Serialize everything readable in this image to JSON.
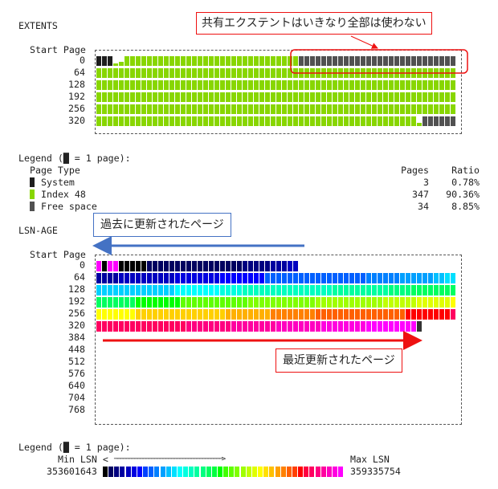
{
  "extents": {
    "title": "EXTENTS",
    "start_page_label": "Start Page",
    "row_labels": [
      "0",
      "64",
      "128",
      "192",
      "256",
      "320"
    ],
    "colors": {
      "system": "#1e1e1e",
      "index": "#88d600",
      "free": "#cccccc"
    },
    "rows": [
      [
        {
          "type": "system",
          "count": 3
        },
        {
          "type": "index",
          "count": 1,
          "fill": 0.25
        },
        {
          "type": "index",
          "count": 1,
          "fill": 0.4
        },
        {
          "type": "index",
          "count": 31,
          "fill": 1
        },
        {
          "type": "free",
          "count": 28
        }
      ],
      [
        {
          "type": "index",
          "count": 64,
          "fill": 1
        }
      ],
      [
        {
          "type": "index",
          "count": 64,
          "fill": 1
        }
      ],
      [
        {
          "type": "index",
          "count": 64,
          "fill": 1
        }
      ],
      [
        {
          "type": "index",
          "count": 64,
          "fill": 1
        }
      ],
      [
        {
          "type": "index",
          "count": 57,
          "fill": 1
        },
        {
          "type": "index",
          "count": 1,
          "fill": 0.3
        },
        {
          "type": "free",
          "count": 6
        }
      ]
    ],
    "legend": {
      "title": "Legend (█ = 1 page):",
      "headers": [
        "Page Type",
        "Pages",
        "Ratio"
      ],
      "items": [
        {
          "type": "system",
          "label": "System",
          "pages": "3",
          "ratio": "0.78%"
        },
        {
          "type": "index",
          "label": "Index 48",
          "pages": "347",
          "ratio": "90.36%"
        },
        {
          "type": "free",
          "label": "Free space",
          "pages": "34",
          "ratio": "8.85%"
        }
      ]
    }
  },
  "lsn_age": {
    "title": "LSN-AGE",
    "start_page_label": "Start Page",
    "row_labels": [
      "0",
      "64",
      "128",
      "192",
      "256",
      "320",
      "384",
      "448",
      "512",
      "576",
      "640",
      "704",
      "768"
    ],
    "rows": [
      [
        [
          "#ff00ff",
          1
        ],
        [
          "#000000",
          1
        ],
        [
          "#ff00ff",
          2
        ],
        [
          "#000000",
          5
        ],
        [
          "#000060",
          17
        ],
        [
          "#000080",
          5
        ],
        [
          "#0000a0",
          3
        ],
        [
          "#0000c0",
          2
        ]
      ],
      [
        [
          "#0000a0",
          4
        ],
        [
          "#0000c0",
          10
        ],
        [
          "#0000e0",
          8
        ],
        [
          "#0000ff",
          8
        ],
        [
          "#0060ff",
          18
        ],
        [
          "#0080ff",
          6
        ],
        [
          "#00a0ff",
          6
        ],
        [
          "#00c0ff",
          2
        ],
        [
          "#00e0ff",
          2
        ]
      ],
      [
        [
          "#00d0ff",
          14
        ],
        [
          "#00ffff",
          8
        ],
        [
          "#00ffe0",
          4
        ],
        [
          "#00ffc0",
          16
        ],
        [
          "#00ffa0",
          10
        ],
        [
          "#00ff80",
          4
        ],
        [
          "#00ff60",
          8
        ]
      ],
      [
        [
          "#00ff60",
          7
        ],
        [
          "#00ff00",
          8
        ],
        [
          "#60ff00",
          12
        ],
        [
          "#80ff00",
          12
        ],
        [
          "#a0ff00",
          12
        ],
        [
          "#c0ff00",
          6
        ],
        [
          "#e0ff00",
          6
        ],
        [
          "#ffff00",
          1
        ]
      ],
      [
        [
          "#ffff00",
          7
        ],
        [
          "#ffd000",
          16
        ],
        [
          "#ffb000",
          8
        ],
        [
          "#ff8000",
          8
        ],
        [
          "#ff6000",
          16
        ],
        [
          "#ff0000",
          8
        ],
        [
          "#ff0060",
          1
        ]
      ],
      [
        [
          "#ff0060",
          16
        ],
        [
          "#ff0080",
          8
        ],
        [
          "#ff00a0",
          8
        ],
        [
          "#ff00c0",
          8
        ],
        [
          "#ff00e0",
          8
        ],
        [
          "#ff00ff",
          9
        ],
        [
          "#333333",
          1
        ]
      ],
      [],
      [],
      [],
      [],
      [],
      [],
      []
    ],
    "legend": {
      "title": "Legend (█ = 1 page):",
      "min_label": "Min LSN <",
      "arrow": "──────────────────────────────────────>",
      "max_label": "Max LSN",
      "min_value": "353601643",
      "max_value": "359335754",
      "gradient": [
        "#000000",
        "#000060",
        "#000080",
        "#0000a0",
        "#0000c0",
        "#0000e0",
        "#0000ff",
        "#0040ff",
        "#0060ff",
        "#0080ff",
        "#00a0ff",
        "#00c0ff",
        "#00e0ff",
        "#00ffff",
        "#00ffe0",
        "#00ffc0",
        "#00ffa0",
        "#00ff80",
        "#00ff60",
        "#00ff40",
        "#00ff00",
        "#40ff00",
        "#60ff00",
        "#80ff00",
        "#a0ff00",
        "#c0ff00",
        "#e0ff00",
        "#ffff00",
        "#ffe000",
        "#ffc000",
        "#ffa000",
        "#ff8000",
        "#ff6000",
        "#ff4000",
        "#ff0000",
        "#ff0040",
        "#ff0060",
        "#ff0080",
        "#ff00a0",
        "#ff00c0",
        "#ff00e0",
        "#ff00ff"
      ]
    }
  },
  "annotations": {
    "shared_extent": "共有エクステントはいきなり全部は使わない",
    "old_pages": "過去に更新されたページ",
    "recent_pages": "最近更新されたページ",
    "colors": {
      "red": "#ee1111",
      "blue": "#4472c4"
    }
  }
}
